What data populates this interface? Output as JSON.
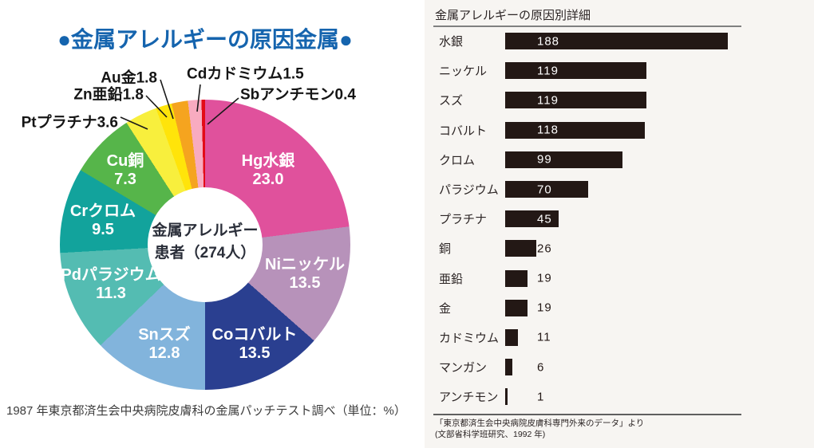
{
  "chart_data": [
    {
      "type": "pie",
      "title": "●金属アレルギーの原因金属●",
      "title_color": "#1564ae",
      "center_label_line1": "金属アレルギー",
      "center_label_line2": "患者（274人）",
      "total_patients": 274,
      "caption": "1987 年東京都済生会中央病院皮膚科の金属パッチテスト調べ（単位：%）",
      "unit": "%",
      "donut": true,
      "start_angle_deg": 0,
      "direction": "clockwise",
      "categories": [
        "Hg水銀",
        "Niニッケル",
        "Coコバルト",
        "Snスズ",
        "Pdパラジウム",
        "Crクロム",
        "Cu銅",
        "Ptプラチナ",
        "Zn亜鉛",
        "Au金",
        "Cdカドミウム",
        "Sbアンチモン"
      ],
      "values": [
        23.0,
        13.5,
        13.5,
        12.8,
        11.3,
        9.5,
        7.3,
        3.6,
        1.8,
        1.8,
        1.5,
        0.4
      ],
      "display_values": [
        "23.0",
        "13.5",
        "13.5",
        "12.8",
        "11.3",
        "9.5",
        "7.3",
        "3.6",
        "1.8",
        "1.8",
        "1.5",
        "0.4"
      ],
      "colors": [
        "#e0519c",
        "#b792ba",
        "#2a3f90",
        "#82b4dc",
        "#54bcb2",
        "#12a39c",
        "#56b54a",
        "#f8ef3d",
        "#ffe40a",
        "#f5a41f",
        "#f8abc0",
        "#e30b17"
      ]
    },
    {
      "type": "bar",
      "orientation": "horizontal",
      "title": "金属アレルギーの原因別詳細",
      "categories": [
        "水銀",
        "ニッケル",
        "スズ",
        "コバルト",
        "クロム",
        "パラジウム",
        "プラチナ",
        "銅",
        "亜鉛",
        "金",
        "カドミウム",
        "マンガン",
        "アンチモン"
      ],
      "values": [
        188,
        119,
        119,
        118,
        99,
        70,
        45,
        26,
        19,
        19,
        11,
        6,
        1
      ],
      "bar_color": "#231815",
      "value_color_inside": "#ffffff",
      "value_color_outside": "#231815",
      "xlim": [
        0,
        200
      ],
      "source_line1": "「東京都済生会中央病院皮膚科専門外来のデータ」より",
      "source_line2": "(文部省科学班研究、1992 年)"
    }
  ]
}
